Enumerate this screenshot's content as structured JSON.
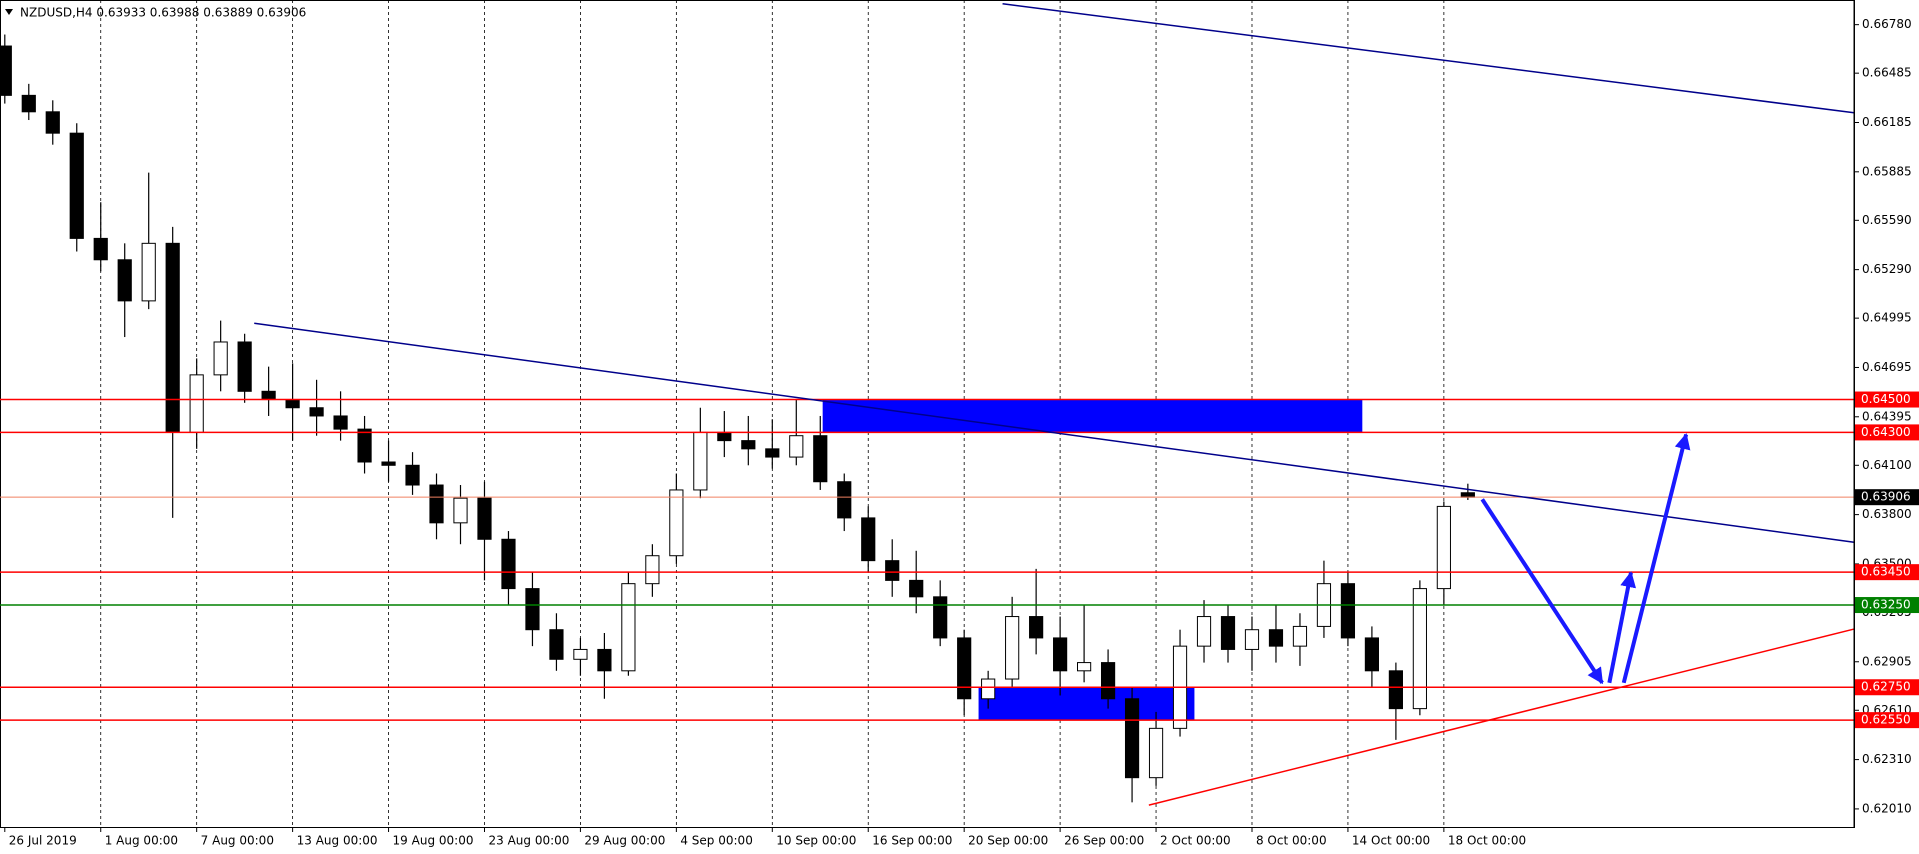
{
  "chart_data": {
    "type": "candlestick",
    "title": "NZDUSD,H4  0.63933 0.63988 0.63889 0.63906",
    "xlim": [
      -0.2,
      77.1
    ],
    "ylim": [
      0.619,
      0.6693
    ],
    "xticks": [
      {
        "value": 0,
        "label": "26 Jul 2019"
      },
      {
        "value": 4,
        "label": "1 Aug 00:00"
      },
      {
        "value": 8,
        "label": "7 Aug 00:00"
      },
      {
        "value": 12,
        "label": "13 Aug 00:00"
      },
      {
        "value": 16,
        "label": "19 Aug 00:00"
      },
      {
        "value": 20,
        "label": "23 Aug 00:00"
      },
      {
        "value": 24,
        "label": "29 Aug 00:00"
      },
      {
        "value": 28,
        "label": "4 Sep 00:00"
      },
      {
        "value": 32,
        "label": "10 Sep 00:00"
      },
      {
        "value": 36,
        "label": "16 Sep 00:00"
      },
      {
        "value": 40,
        "label": "20 Sep 00:00"
      },
      {
        "value": 44,
        "label": "26 Sep 00:00"
      },
      {
        "value": 48,
        "label": "2 Oct 00:00"
      },
      {
        "value": 52,
        "label": "8 Oct 00:00"
      },
      {
        "value": 56,
        "label": "14 Oct 00:00"
      },
      {
        "value": 60,
        "label": "18 Oct 00:00"
      }
    ],
    "yticks": [
      {
        "value": 0.6678,
        "label": "0.66780"
      },
      {
        "value": 0.66485,
        "label": "0.66485"
      },
      {
        "value": 0.66185,
        "label": "0.66185"
      },
      {
        "value": 0.65885,
        "label": "0.65885"
      },
      {
        "value": 0.6559,
        "label": "0.65590"
      },
      {
        "value": 0.6529,
        "label": "0.65290"
      },
      {
        "value": 0.64995,
        "label": "0.64995"
      },
      {
        "value": 0.64695,
        "label": "0.64695"
      },
      {
        "value": 0.64395,
        "label": "0.64395"
      },
      {
        "value": 0.641,
        "label": "0.64100"
      },
      {
        "value": 0.638,
        "label": "0.63800"
      },
      {
        "value": 0.635,
        "label": "0.63500"
      },
      {
        "value": 0.63205,
        "label": "0.63205"
      },
      {
        "value": 0.62905,
        "label": "0.62905"
      },
      {
        "value": 0.6261,
        "label": "0.62610"
      },
      {
        "value": 0.6231,
        "label": "0.62310"
      },
      {
        "value": 0.6201,
        "label": "0.62010"
      }
    ],
    "grid": true,
    "up_color": "#ffffff",
    "down_color": "#000000",
    "open": [
      0.6665,
      0.6635,
      0.6625,
      0.6612,
      0.6548,
      0.6535,
      0.651,
      0.6545,
      0.643,
      0.6465,
      0.6485,
      0.6455,
      0.645,
      0.6445,
      0.644,
      0.6432,
      0.6412,
      0.641,
      0.6398,
      0.6375,
      0.639,
      0.6365,
      0.6335,
      0.631,
      0.6292,
      0.6298,
      0.6285,
      0.6338,
      0.6355,
      0.6395,
      0.643,
      0.6425,
      0.642,
      0.6415,
      0.6428,
      0.64,
      0.6378,
      0.6352,
      0.634,
      0.633,
      0.6305,
      0.6268,
      0.628,
      0.6318,
      0.6305,
      0.6285,
      0.629,
      0.6268,
      0.622,
      0.625,
      0.63,
      0.6318,
      0.6298,
      0.631,
      0.63,
      0.6312,
      0.6338,
      0.6305,
      0.6285,
      0.6262,
      0.6335,
      0.63933
    ],
    "high": [
      0.6672,
      0.6642,
      0.6632,
      0.6618,
      0.657,
      0.6545,
      0.6588,
      0.6555,
      0.6475,
      0.6498,
      0.649,
      0.647,
      0.6472,
      0.6462,
      0.6455,
      0.644,
      0.6425,
      0.6418,
      0.6405,
      0.6398,
      0.64,
      0.637,
      0.6345,
      0.632,
      0.6305,
      0.6308,
      0.6345,
      0.6362,
      0.6405,
      0.6445,
      0.6443,
      0.644,
      0.6438,
      0.645,
      0.644,
      0.6405,
      0.6385,
      0.6365,
      0.6358,
      0.634,
      0.631,
      0.6285,
      0.633,
      0.6347,
      0.6318,
      0.6325,
      0.6298,
      0.6275,
      0.626,
      0.631,
      0.6328,
      0.6325,
      0.6318,
      0.6325,
      0.632,
      0.6352,
      0.6345,
      0.6312,
      0.629,
      0.634,
      0.6388,
      0.63988
    ],
    "low": [
      0.663,
      0.662,
      0.6605,
      0.654,
      0.6528,
      0.6488,
      0.6505,
      0.6378,
      0.642,
      0.6455,
      0.6448,
      0.644,
      0.6425,
      0.6428,
      0.6425,
      0.6405,
      0.64,
      0.6392,
      0.6365,
      0.6362,
      0.634,
      0.6325,
      0.63,
      0.6285,
      0.6282,
      0.6268,
      0.6282,
      0.633,
      0.635,
      0.639,
      0.6415,
      0.641,
      0.6408,
      0.641,
      0.6395,
      0.637,
      0.6345,
      0.633,
      0.632,
      0.63,
      0.6258,
      0.6262,
      0.6275,
      0.6295,
      0.627,
      0.6278,
      0.6262,
      0.6205,
      0.6215,
      0.6245,
      0.629,
      0.629,
      0.6285,
      0.629,
      0.6288,
      0.6305,
      0.63,
      0.6275,
      0.6243,
      0.6258,
      0.6325,
      0.63889
    ],
    "close": [
      0.6635,
      0.6625,
      0.6612,
      0.6548,
      0.6535,
      0.651,
      0.6545,
      0.643,
      0.6465,
      0.6485,
      0.6455,
      0.645,
      0.6445,
      0.644,
      0.6432,
      0.6412,
      0.641,
      0.6398,
      0.6375,
      0.639,
      0.6365,
      0.6335,
      0.631,
      0.6292,
      0.6298,
      0.6285,
      0.6338,
      0.6355,
      0.6395,
      0.643,
      0.6425,
      0.642,
      0.6415,
      0.6428,
      0.64,
      0.6378,
      0.6352,
      0.634,
      0.633,
      0.6305,
      0.6268,
      0.628,
      0.6318,
      0.6305,
      0.6285,
      0.629,
      0.6268,
      0.622,
      0.625,
      0.63,
      0.6318,
      0.6298,
      0.631,
      0.63,
      0.6312,
      0.6338,
      0.6305,
      0.6285,
      0.6262,
      0.6335,
      0.6385,
      0.63906
    ],
    "levels": [
      {
        "value": 0.645,
        "label": "0.64500",
        "color": "#ff0000"
      },
      {
        "value": 0.643,
        "label": "0.64300",
        "color": "#ff0000"
      },
      {
        "value": 0.6345,
        "label": "0.63450",
        "color": "#ff0000"
      },
      {
        "value": 0.6325,
        "label": "0.63250",
        "color": "#008000"
      },
      {
        "value": 0.6275,
        "label": "0.62750",
        "color": "#ff0000"
      },
      {
        "value": 0.6255,
        "label": "0.62550",
        "color": "#ff0000"
      }
    ],
    "price_line": {
      "value": 0.63906,
      "label": "0.63906",
      "color": "#f08060"
    },
    "trendlines": [
      {
        "x": [
          41.6,
          77.1
        ],
        "y": [
          0.66907,
          0.66244
        ],
        "color": "#00008b"
      },
      {
        "x": [
          10.4,
          77.1
        ],
        "y": [
          0.64964,
          0.63632
        ],
        "color": "#00008b"
      },
      {
        "x": [
          47.7,
          77.1
        ],
        "y": [
          0.62033,
          0.63104
        ],
        "color": "#ff0000"
      }
    ],
    "zones": [
      {
        "x": [
          34.1,
          56.6
        ],
        "y": [
          0.643,
          0.645
        ],
        "color": "#0000ff"
      },
      {
        "x": [
          40.6,
          49.6
        ],
        "y": [
          0.6255,
          0.6275
        ],
        "color": "#0000ff"
      }
    ],
    "arrows": [
      {
        "x": [
          61.6,
          66.6
        ],
        "y": [
          0.63893,
          0.62777
        ],
        "color": "#1a1aff"
      },
      {
        "x": [
          66.9,
          67.8
        ],
        "y": [
          0.62777,
          0.63447
        ],
        "color": "#1a1aff"
      },
      {
        "x": [
          67.5,
          70.1
        ],
        "y": [
          0.62777,
          0.64287
        ],
        "color": "#1a1aff"
      }
    ]
  }
}
